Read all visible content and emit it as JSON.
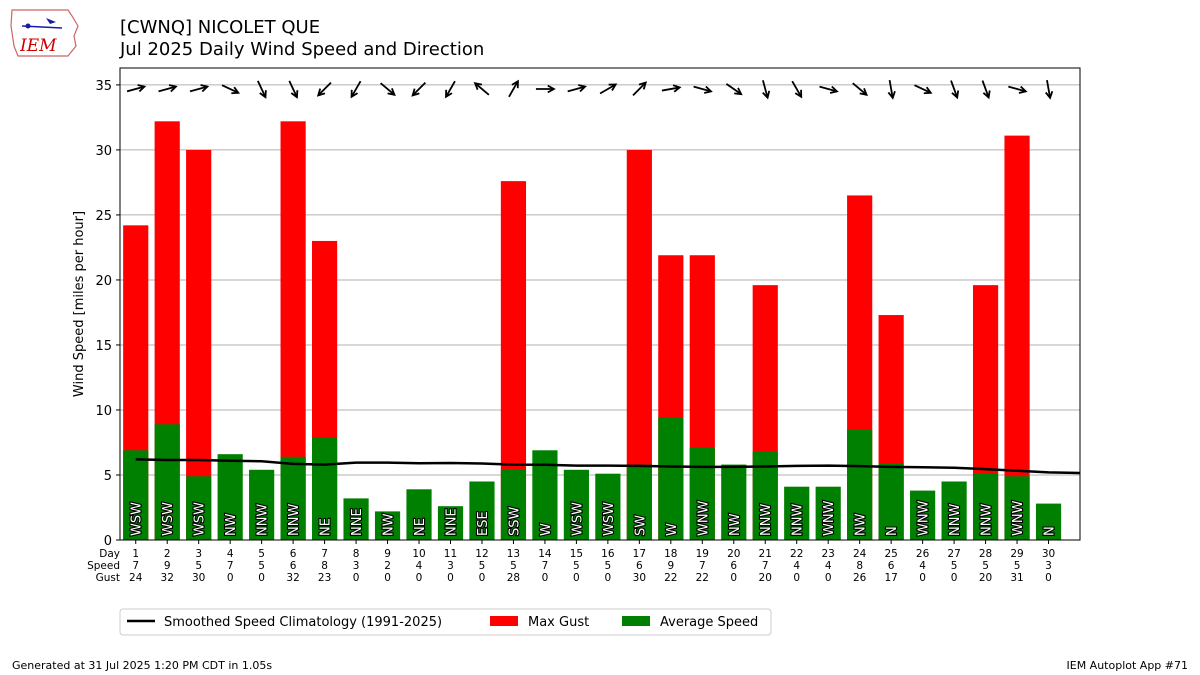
{
  "header": {
    "title": "[CWNQ] NICOLET  QUE",
    "subtitle": "Jul 2025 Daily Wind Speed and Direction"
  },
  "logo": {
    "text": "IEM",
    "icon": "iowa-state-outline-icon",
    "color": "#cc0000"
  },
  "footer": {
    "generated": "Generated at 31 Jul 2025 1:20 PM CDT in 1.05s",
    "app": "IEM Autoplot App #71"
  },
  "chart_data": {
    "type": "bar",
    "ylabel": "Wind Speed [miles per hour]",
    "ylim": [
      0,
      36.3
    ],
    "yticks": [
      0,
      5,
      10,
      15,
      20,
      25,
      30,
      35
    ],
    "grid": true,
    "legend_position": "below",
    "row_labels": [
      "Day",
      "Speed",
      "Gust"
    ],
    "days": [
      1,
      2,
      3,
      4,
      5,
      6,
      7,
      8,
      9,
      10,
      11,
      12,
      13,
      14,
      15,
      16,
      17,
      18,
      19,
      20,
      21,
      22,
      23,
      24,
      25,
      26,
      27,
      28,
      29,
      30
    ],
    "speed_labels": [
      7,
      9,
      5,
      7,
      5,
      6,
      8,
      3,
      2,
      4,
      3,
      5,
      5,
      7,
      5,
      5,
      6,
      9,
      7,
      6,
      7,
      4,
      4,
      8,
      6,
      4,
      5,
      5,
      5,
      3
    ],
    "gust_labels": [
      24,
      32,
      30,
      0,
      0,
      32,
      23,
      0,
      0,
      0,
      0,
      0,
      28,
      0,
      0,
      0,
      30,
      22,
      22,
      0,
      20,
      0,
      0,
      26,
      17,
      0,
      0,
      20,
      31,
      0
    ],
    "series": [
      {
        "name": "Max Gust",
        "color": "#ff0000",
        "values": [
          24.2,
          32.2,
          30.0,
          0,
          0,
          32.2,
          23.0,
          0,
          0,
          0,
          0,
          0,
          27.6,
          0,
          0,
          0,
          30.0,
          21.9,
          21.9,
          0,
          19.6,
          0,
          0,
          26.5,
          17.3,
          0,
          0,
          19.6,
          31.1,
          0
        ]
      },
      {
        "name": "Average Speed",
        "color": "#008000",
        "values": [
          6.9,
          8.9,
          4.9,
          6.6,
          5.4,
          6.4,
          7.9,
          3.2,
          2.2,
          3.9,
          2.6,
          4.5,
          5.4,
          6.9,
          5.4,
          5.1,
          5.8,
          9.4,
          7.1,
          5.8,
          6.8,
          4.1,
          4.1,
          8.5,
          5.9,
          3.8,
          4.5,
          5.1,
          4.9,
          2.8
        ]
      },
      {
        "name": "Smoothed Speed Climatology (1991-2025)",
        "color": "#000000",
        "values": [
          6.2,
          6.15,
          6.15,
          6.1,
          6.05,
          5.85,
          5.8,
          5.95,
          5.95,
          5.9,
          5.92,
          5.88,
          5.8,
          5.78,
          5.72,
          5.72,
          5.7,
          5.65,
          5.62,
          5.62,
          5.65,
          5.7,
          5.72,
          5.68,
          5.62,
          5.6,
          5.55,
          5.45,
          5.32,
          5.2
        ]
      }
    ],
    "directions": [
      "WSW",
      "WSW",
      "WSW",
      "NW",
      "NNW",
      "NNW",
      "NE",
      "NNE",
      "NW",
      "NE",
      "NNE",
      "ESE",
      "SSW",
      "W",
      "WSW",
      "WSW",
      "SW",
      "W",
      "WNW",
      "NW",
      "NNW",
      "NNW",
      "WNW",
      "NW",
      "N",
      "WNW",
      "NNW",
      "NNW",
      "WNW",
      "N"
    ],
    "arrow_angles": [
      -15,
      -15,
      -15,
      25,
      65,
      65,
      135,
      120,
      40,
      135,
      120,
      220,
      -60,
      0,
      -15,
      -30,
      -45,
      -10,
      15,
      35,
      75,
      60,
      15,
      40,
      80,
      25,
      70,
      70,
      15,
      80
    ]
  }
}
